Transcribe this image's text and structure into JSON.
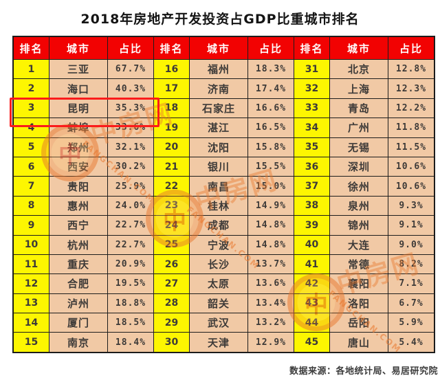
{
  "chart_data": {
    "type": "table",
    "title": "2018年房地产开发投资占GDP比重城市排名",
    "columns": [
      "排名",
      "城市",
      "占比"
    ],
    "rows": [
      [
        1,
        "三亚",
        "67.7%"
      ],
      [
        2,
        "海口",
        "40.3%"
      ],
      [
        3,
        "昆明",
        "35.3%"
      ],
      [
        4,
        "蚌埠",
        "33.6%"
      ],
      [
        5,
        "郑州",
        "32.1%"
      ],
      [
        6,
        "西安",
        "30.2%"
      ],
      [
        7,
        "贵阳",
        "25.9%"
      ],
      [
        8,
        "惠州",
        "24.0%"
      ],
      [
        9,
        "西宁",
        "22.7%"
      ],
      [
        10,
        "杭州",
        "22.7%"
      ],
      [
        11,
        "重庆",
        "20.9%"
      ],
      [
        12,
        "合肥",
        "19.5%"
      ],
      [
        13,
        "泸州",
        "18.8%"
      ],
      [
        14,
        "厦门",
        "18.5%"
      ],
      [
        15,
        "南京",
        "18.4%"
      ],
      [
        16,
        "福州",
        "18.3%"
      ],
      [
        17,
        "济南",
        "17.4%"
      ],
      [
        18,
        "石家庄",
        "16.6%"
      ],
      [
        19,
        "湛江",
        "16.5%"
      ],
      [
        20,
        "沈阳",
        "15.8%"
      ],
      [
        21,
        "银川",
        "15.5%"
      ],
      [
        22,
        "南昌",
        "15.0%"
      ],
      [
        23,
        "桂林",
        "14.9%"
      ],
      [
        24,
        "成都",
        "14.8%"
      ],
      [
        25,
        "宁波",
        "14.8%"
      ],
      [
        26,
        "长沙",
        "13.7%"
      ],
      [
        27,
        "太原",
        "13.6%"
      ],
      [
        28,
        "韶关",
        "13.4%"
      ],
      [
        29,
        "武汉",
        "13.2%"
      ],
      [
        30,
        "天津",
        "12.9%"
      ],
      [
        31,
        "北京",
        "12.8%"
      ],
      [
        32,
        "上海",
        "12.3%"
      ],
      [
        33,
        "青岛",
        "12.2%"
      ],
      [
        34,
        "广州",
        "11.8%"
      ],
      [
        35,
        "无锡",
        "11.5%"
      ],
      [
        36,
        "深圳",
        "10.6%"
      ],
      [
        37,
        "徐州",
        "10.6%"
      ],
      [
        38,
        "泉州",
        "9.3%"
      ],
      [
        39,
        "锦州",
        "9.1%"
      ],
      [
        40,
        "大连",
        "9.0%"
      ],
      [
        41,
        "常德",
        "8.2%"
      ],
      [
        42,
        "襄阳",
        "7.1%"
      ],
      [
        43,
        "洛阳",
        "6.7%"
      ],
      [
        44,
        "岳阳",
        "5.9%"
      ],
      [
        45,
        "唐山",
        "5.4%"
      ]
    ],
    "groups_per_row": 3,
    "rows_per_group": 15,
    "highlighted_row": {
      "rank": 3,
      "city": "昆明",
      "pct": "35.3%"
    },
    "source": "数据来源：各地统计局、易居研究院",
    "layout": {
      "grid": true,
      "legend": false
    }
  },
  "watermark": {
    "seal": "中",
    "cn": "中房网",
    "en": "FANGCHAN.COM"
  },
  "colors": {
    "header_bg": "#f20202",
    "header_text": "#ffffff",
    "rank_bg": "#fdf601",
    "cell_bg": "#f1c9a5",
    "grid": "#1c1c1c",
    "highlight": "#fb1b1b",
    "watermark": "#e8772c",
    "text": "#3d3a38"
  }
}
